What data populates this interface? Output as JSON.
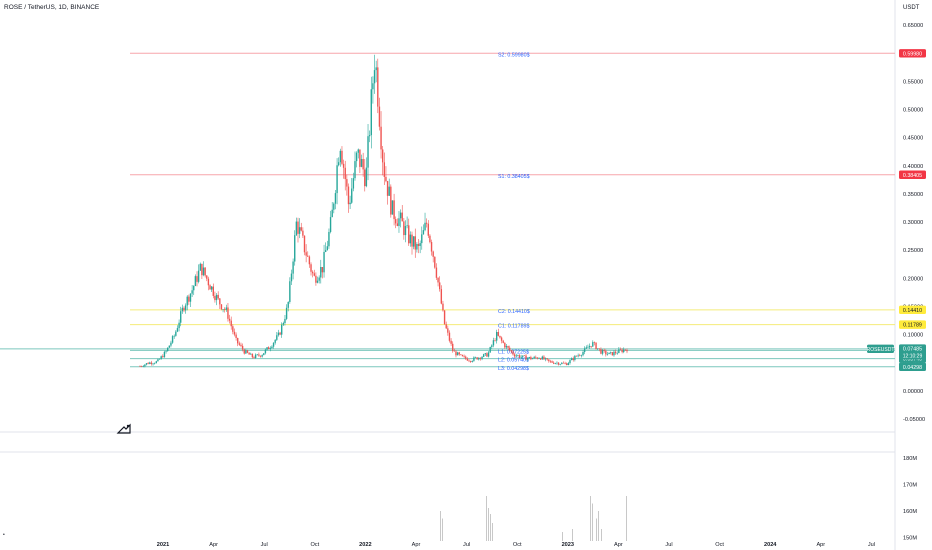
{
  "header": {
    "symbol_line": "ROSE / TetherUS, 1D, BINANCE",
    "currency": "USDT"
  },
  "colors": {
    "up": "#26a69a",
    "down": "#ef5350",
    "resistance": "#f23645",
    "yellow": "#ffeb3b",
    "yellow_badge": "#ffeb3b",
    "support": "#2e9e8f",
    "level_text": "#2962ff",
    "volume": "#c8c8c8"
  },
  "chart_data": {
    "type": "candlestick",
    "price_axis": {
      "ticks": [
        "0.65000",
        "0.60000",
        "0.55000",
        "0.50000",
        "0.45000",
        "0.40000",
        "0.35000",
        "0.30000",
        "0.25000",
        "0.20000",
        "0.15000",
        "0.10000",
        "0.05000",
        "0.00000",
        "-0.05000"
      ],
      "ylim": [
        -0.05,
        0.65
      ]
    },
    "time_axis": {
      "ticks": [
        "2021",
        "Apr",
        "Jul",
        "Oct",
        "2022",
        "Apr",
        "Jul",
        "Oct",
        "2023",
        "Apr",
        "Jul",
        "Oct",
        "2024",
        "Apr",
        "Jul"
      ]
    },
    "volume_axis": {
      "ticks": [
        "180M",
        "170M",
        "160M",
        "150M"
      ],
      "ylim": [
        150,
        180
      ]
    },
    "levels": [
      {
        "label": "S2: 0.59980$",
        "value": 0.5998,
        "badge": "0.59980",
        "kind": "resistance"
      },
      {
        "label": "S1: 0.38405$",
        "value": 0.38405,
        "badge": "0.38405",
        "kind": "resistance"
      },
      {
        "label": "C2: 0.14410$",
        "value": 0.1441,
        "badge": "0.14410",
        "kind": "yellow"
      },
      {
        "label": "C1: 0.11789$",
        "value": 0.11789,
        "badge": "0.11789",
        "kind": "yellow"
      },
      {
        "label": "L1: 0.07225$",
        "value": 0.07225,
        "badge": "0.07225",
        "kind": "support"
      },
      {
        "label": "L2: 0.05740$",
        "value": 0.0574,
        "badge": "0.05740",
        "kind": "support"
      },
      {
        "label": "L3: 0.04298$",
        "value": 0.04298,
        "badge": "0.04298",
        "kind": "support"
      }
    ],
    "current": {
      "symbol": "ROSEUSDT",
      "price": "0.07485",
      "value": 0.07485,
      "countdown": "12:10:29"
    },
    "price_path": [
      [
        0,
        0.044
      ],
      [
        1,
        0.05
      ],
      [
        2,
        0.052
      ],
      [
        3,
        0.07
      ],
      [
        4,
        0.1
      ],
      [
        5,
        0.15
      ],
      [
        6,
        0.18
      ],
      [
        7,
        0.22
      ],
      [
        8,
        0.19
      ],
      [
        9,
        0.16
      ],
      [
        10,
        0.14
      ],
      [
        11,
        0.09
      ],
      [
        12,
        0.07
      ],
      [
        13,
        0.06
      ],
      [
        14,
        0.065
      ],
      [
        15,
        0.08
      ],
      [
        16,
        0.1
      ],
      [
        17,
        0.15
      ],
      [
        18,
        0.3
      ],
      [
        19,
        0.25
      ],
      [
        20,
        0.2
      ],
      [
        21,
        0.22
      ],
      [
        22,
        0.3
      ],
      [
        23,
        0.45
      ],
      [
        24,
        0.33
      ],
      [
        25,
        0.42
      ],
      [
        26,
        0.38
      ],
      [
        27,
        0.6
      ],
      [
        28,
        0.4
      ],
      [
        29,
        0.32
      ],
      [
        30,
        0.3
      ],
      [
        31,
        0.27
      ],
      [
        32,
        0.25
      ],
      [
        33,
        0.3
      ],
      [
        34,
        0.22
      ],
      [
        35,
        0.12
      ],
      [
        36,
        0.07
      ],
      [
        37,
        0.06
      ],
      [
        38,
        0.055
      ],
      [
        39,
        0.06
      ],
      [
        40,
        0.065
      ],
      [
        41,
        0.1
      ],
      [
        42,
        0.08
      ],
      [
        43,
        0.065
      ],
      [
        44,
        0.06
      ],
      [
        45,
        0.058
      ],
      [
        46,
        0.06
      ],
      [
        47,
        0.052
      ],
      [
        48,
        0.05
      ],
      [
        49,
        0.048
      ],
      [
        50,
        0.06
      ],
      [
        51,
        0.07
      ],
      [
        52,
        0.085
      ],
      [
        53,
        0.07
      ],
      [
        54,
        0.065
      ],
      [
        55,
        0.07
      ],
      [
        56,
        0.075
      ]
    ]
  },
  "tv_logo": "TV"
}
